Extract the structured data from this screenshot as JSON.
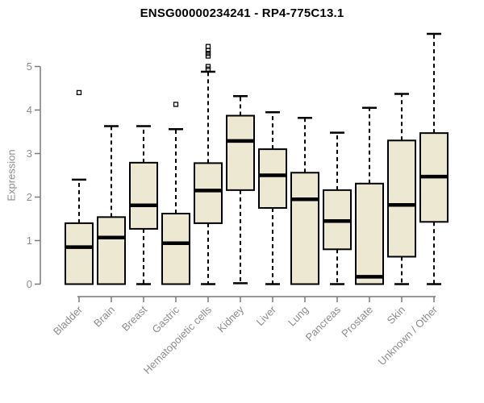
{
  "window": {
    "title": "ENSG00000234241 - RP4-775C13.1"
  },
  "chart_data": {
    "type": "boxplot",
    "title": "ENSG00000234241 - RP4-775C13.1",
    "xlabel": "",
    "ylabel": "Expression",
    "ylim": [
      0,
      5
    ],
    "y_ticks": [
      0,
      1,
      2,
      3,
      4,
      5
    ],
    "grid": "off",
    "legend": "none",
    "categories": [
      "Bladder",
      "Brain",
      "Breast",
      "Gastric",
      "Hematopoietic cells",
      "Kidney",
      "Liver",
      "Lung",
      "Pancreas",
      "Prostate",
      "Skin",
      "Unknown / Other"
    ],
    "boxes": [
      {
        "category": "Bladder",
        "low": 0,
        "q1": 0,
        "median": 0.85,
        "q3": 1.4,
        "high": 2.4,
        "outliers": [
          4.4
        ]
      },
      {
        "category": "Brain",
        "low": 0,
        "q1": 0,
        "median": 1.07,
        "q3": 1.54,
        "high": 3.63,
        "outliers": []
      },
      {
        "category": "Breast",
        "low": 0,
        "q1": 1.27,
        "median": 1.81,
        "q3": 2.79,
        "high": 3.63,
        "outliers": []
      },
      {
        "category": "Gastric",
        "low": 0,
        "q1": 0,
        "median": 0.94,
        "q3": 1.62,
        "high": 3.56,
        "outliers": [
          4.13
        ]
      },
      {
        "category": "Hematopoietic cells",
        "low": 0,
        "q1": 1.4,
        "median": 2.15,
        "q3": 2.78,
        "high": 4.88,
        "outliers": [
          4.94,
          5.0,
          5.24,
          5.3,
          5.37,
          5.46
        ]
      },
      {
        "category": "Kidney",
        "low": 0.02,
        "q1": 2.16,
        "median": 3.29,
        "q3": 3.87,
        "high": 4.32,
        "outliers": []
      },
      {
        "category": "Liver",
        "low": 0,
        "q1": 1.75,
        "median": 2.5,
        "q3": 3.1,
        "high": 3.95,
        "outliers": []
      },
      {
        "category": "Lung",
        "low": 0,
        "q1": 0,
        "median": 1.95,
        "q3": 2.56,
        "high": 3.82,
        "outliers": []
      },
      {
        "category": "Pancreas",
        "low": 0,
        "q1": 0.8,
        "median": 1.45,
        "q3": 2.16,
        "high": 3.48,
        "outliers": []
      },
      {
        "category": "Prostate",
        "low": 0,
        "q1": 0,
        "median": 0.17,
        "q3": 2.31,
        "high": 4.05,
        "outliers": []
      },
      {
        "category": "Skin",
        "low": 0,
        "q1": 0.63,
        "median": 1.82,
        "q3": 3.3,
        "high": 4.37,
        "outliers": []
      },
      {
        "category": "Unknown / Other",
        "low": 0,
        "q1": 1.43,
        "median": 2.47,
        "q3": 3.47,
        "high": 5.75,
        "outliers": []
      }
    ],
    "colors": {
      "box_fill": "#ede8d1",
      "box_border": "#000000",
      "median": "#000000",
      "whisker": "#000000",
      "outlier": "#000000",
      "axis_line": "#7a7a7a",
      "axis_text": "#8c8c8c",
      "title_text": "#000000"
    }
  }
}
